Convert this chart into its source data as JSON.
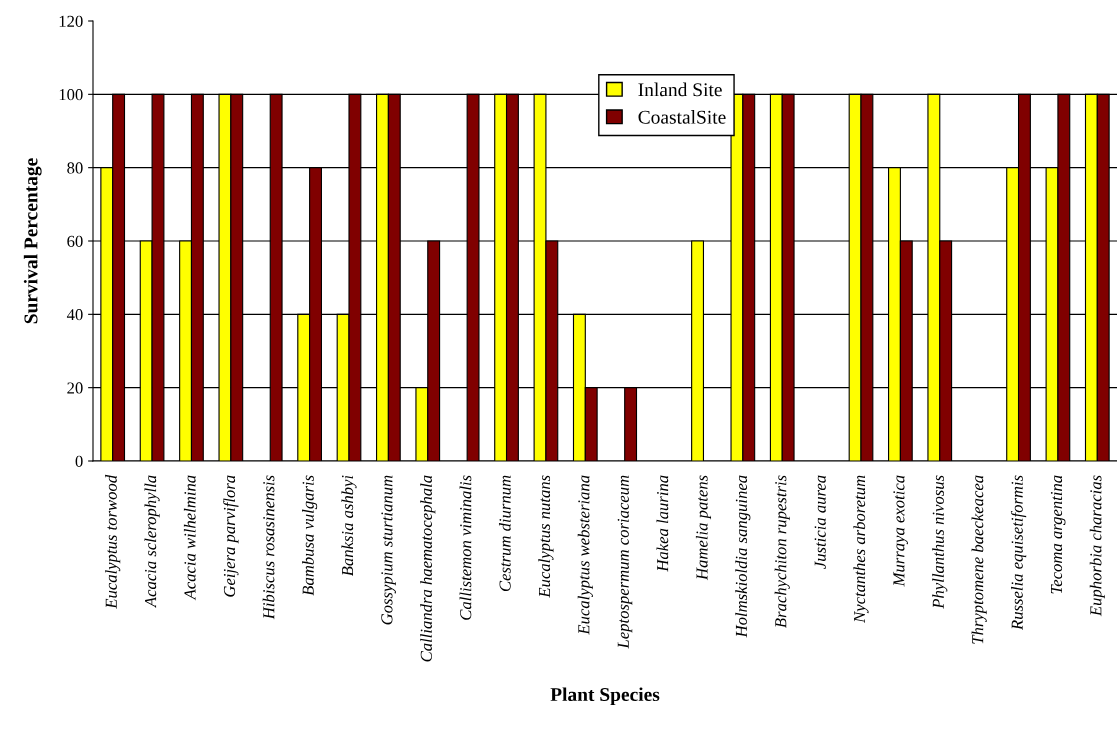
{
  "chart_data": {
    "type": "bar",
    "xlabel": "Plant Species",
    "ylabel": "Survival Percentage",
    "categories": [
      "Eucalyptus torwood",
      "Acacia sclerophylla",
      "Acacia wilhelmina",
      "Geijera parviflora",
      "Hibiscus rosasinensis",
      "Bambusa vulgaris",
      "Banksia ashbyi",
      "Gossypium sturtianum",
      "Calliandra haematocephala",
      "Callistemon viminalis",
      "Cestrum diurnum",
      "Eucalyptus nutans",
      "Eucalyptus websteriana",
      "Leptospermum coriaceum",
      "Hakea laurina",
      "Hamelia patens",
      "Holmskioldia sanguinea",
      "Brachychiton rupestris",
      "Justicia aurea",
      "Nyctanthes arboretum",
      "Murraya exotica",
      "Phyllanthus nivosus",
      "Thryptomene baeckeacea",
      "Russelia equisetiformis",
      "Tecoma argentina",
      "Euphorbia characias"
    ],
    "series": [
      {
        "name": "Inland Site",
        "color": "#ffff00",
        "values": [
          80,
          60,
          60,
          100,
          0,
          40,
          40,
          100,
          20,
          0,
          100,
          100,
          40,
          0,
          0,
          60,
          100,
          100,
          0,
          100,
          80,
          100,
          0,
          80,
          80,
          100
        ]
      },
      {
        "name": "CoastalSite",
        "color": "#800000",
        "values": [
          100,
          100,
          100,
          100,
          100,
          80,
          100,
          100,
          60,
          100,
          100,
          60,
          20,
          20,
          0,
          0,
          100,
          100,
          0,
          100,
          60,
          60,
          0,
          100,
          100,
          100
        ]
      }
    ],
    "ylim": [
      0,
      120
    ],
    "yticks": [
      0,
      20,
      40,
      60,
      80,
      100,
      120
    ],
    "grid": "y",
    "legend": "top"
  }
}
